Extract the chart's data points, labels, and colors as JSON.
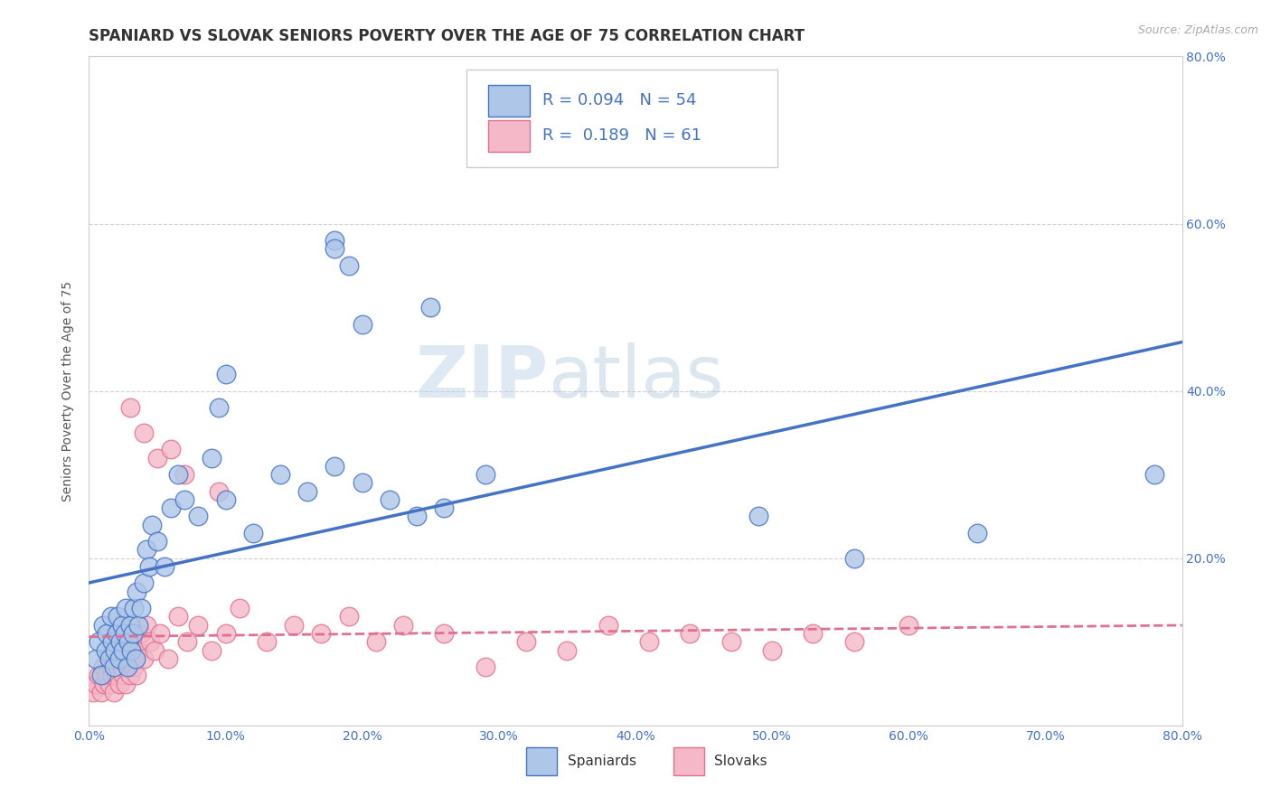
{
  "title": "SPANIARD VS SLOVAK SENIORS POVERTY OVER THE AGE OF 75 CORRELATION CHART",
  "source_text": "Source: ZipAtlas.com",
  "ylabel": "Seniors Poverty Over the Age of 75",
  "xlim": [
    0.0,
    0.8
  ],
  "ylim": [
    0.0,
    0.8
  ],
  "xtick_labels": [
    "0.0%",
    "",
    "10.0%",
    "",
    "20.0%",
    "",
    "30.0%",
    "",
    "40.0%",
    "",
    "50.0%",
    "",
    "60.0%",
    "",
    "70.0%",
    "",
    "80.0%"
  ],
  "ytick_labels_right": [
    "20.0%",
    "40.0%",
    "60.0%",
    "80.0%"
  ],
  "ytick_vals": [
    0.0,
    0.2,
    0.4,
    0.6,
    0.8
  ],
  "xtick_vals": [
    0.0,
    0.05,
    0.1,
    0.15,
    0.2,
    0.25,
    0.3,
    0.35,
    0.4,
    0.45,
    0.5,
    0.55,
    0.6,
    0.65,
    0.7,
    0.75,
    0.8
  ],
  "spaniards_color": "#aec6e8",
  "slovaks_color": "#f4b8c8",
  "spaniards_edge_color": "#4472c4",
  "slovaks_edge_color": "#e07090",
  "trend_spaniards_color": "#4472c4",
  "trend_slovaks_color": "#e07090",
  "R_spaniards": 0.094,
  "N_spaniards": 54,
  "R_slovaks": 0.189,
  "N_slovaks": 61,
  "legend_text_color": "#4472c4",
  "background_color": "#ffffff",
  "grid_color": "#cccccc",
  "watermark": "ZIPatlas",
  "spaniards_x": [
    0.005,
    0.007,
    0.009,
    0.01,
    0.012,
    0.013,
    0.015,
    0.016,
    0.017,
    0.018,
    0.019,
    0.02,
    0.021,
    0.022,
    0.023,
    0.024,
    0.025,
    0.026,
    0.027,
    0.028,
    0.029,
    0.03,
    0.031,
    0.032,
    0.033,
    0.034,
    0.035,
    0.036,
    0.038,
    0.04,
    0.042,
    0.044,
    0.046,
    0.05,
    0.055,
    0.06,
    0.065,
    0.07,
    0.08,
    0.09,
    0.1,
    0.12,
    0.14,
    0.16,
    0.18,
    0.2,
    0.22,
    0.24,
    0.26,
    0.29,
    0.49,
    0.56,
    0.65,
    0.78
  ],
  "spaniards_y": [
    0.08,
    0.1,
    0.06,
    0.12,
    0.09,
    0.11,
    0.08,
    0.13,
    0.1,
    0.07,
    0.09,
    0.11,
    0.13,
    0.08,
    0.1,
    0.12,
    0.09,
    0.11,
    0.14,
    0.07,
    0.1,
    0.12,
    0.09,
    0.11,
    0.14,
    0.08,
    0.16,
    0.12,
    0.14,
    0.17,
    0.21,
    0.19,
    0.24,
    0.22,
    0.19,
    0.26,
    0.3,
    0.27,
    0.25,
    0.32,
    0.27,
    0.23,
    0.3,
    0.28,
    0.31,
    0.29,
    0.27,
    0.25,
    0.26,
    0.3,
    0.25,
    0.2,
    0.23,
    0.3
  ],
  "spaniards_y_outliers": [
    0.58,
    0.57,
    0.55,
    0.5,
    0.48,
    0.42,
    0.38
  ],
  "spaniards_x_outliers": [
    0.18,
    0.18,
    0.19,
    0.25,
    0.2,
    0.1,
    0.095
  ],
  "slovaks_x": [
    0.003,
    0.005,
    0.007,
    0.009,
    0.01,
    0.011,
    0.013,
    0.014,
    0.015,
    0.016,
    0.017,
    0.018,
    0.019,
    0.02,
    0.021,
    0.022,
    0.023,
    0.024,
    0.025,
    0.026,
    0.027,
    0.028,
    0.029,
    0.03,
    0.031,
    0.032,
    0.033,
    0.034,
    0.035,
    0.036,
    0.038,
    0.04,
    0.042,
    0.045,
    0.048,
    0.052,
    0.058,
    0.065,
    0.072,
    0.08,
    0.09,
    0.1,
    0.11,
    0.13,
    0.15,
    0.17,
    0.19,
    0.21,
    0.23,
    0.26,
    0.29,
    0.32,
    0.35,
    0.38,
    0.41,
    0.44,
    0.47,
    0.5,
    0.53,
    0.56,
    0.6
  ],
  "slovaks_y": [
    0.04,
    0.05,
    0.06,
    0.04,
    0.07,
    0.05,
    0.06,
    0.08,
    0.05,
    0.07,
    0.06,
    0.04,
    0.08,
    0.06,
    0.07,
    0.05,
    0.09,
    0.07,
    0.06,
    0.08,
    0.05,
    0.1,
    0.07,
    0.06,
    0.08,
    0.09,
    0.07,
    0.1,
    0.06,
    0.09,
    0.11,
    0.08,
    0.12,
    0.1,
    0.09,
    0.11,
    0.08,
    0.13,
    0.1,
    0.12,
    0.09,
    0.11,
    0.14,
    0.1,
    0.12,
    0.11,
    0.13,
    0.1,
    0.12,
    0.11,
    0.07,
    0.1,
    0.09,
    0.12,
    0.1,
    0.11,
    0.1,
    0.09,
    0.11,
    0.1,
    0.12
  ],
  "slovaks_y_outliers": [
    0.38,
    0.35,
    0.32,
    0.33,
    0.3,
    0.28
  ],
  "slovaks_x_outliers": [
    0.03,
    0.04,
    0.05,
    0.06,
    0.07,
    0.095
  ],
  "title_fontsize": 12,
  "axis_label_fontsize": 10,
  "tick_fontsize": 10,
  "legend_fontsize": 13
}
